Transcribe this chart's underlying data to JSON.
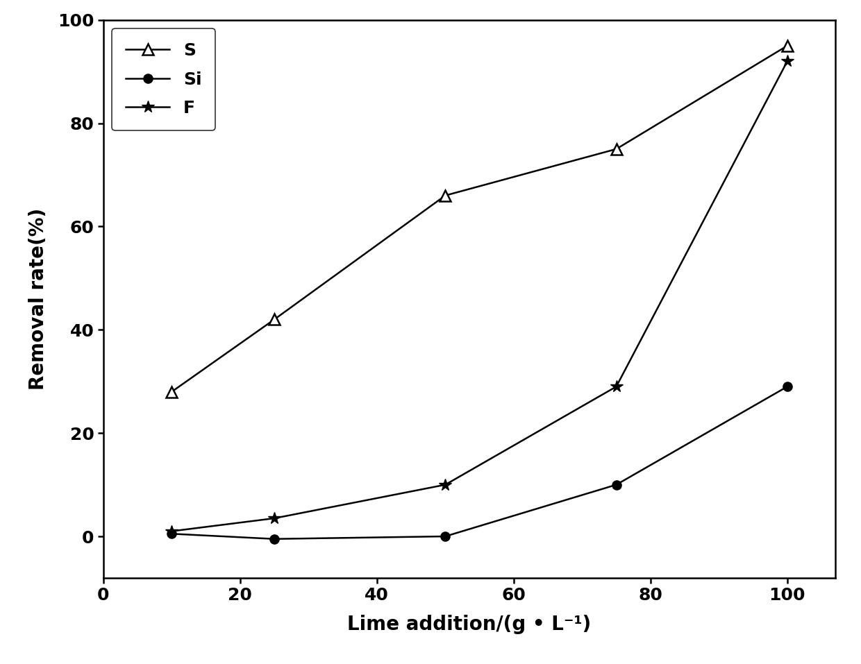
{
  "x": [
    10,
    25,
    50,
    75,
    100
  ],
  "S_y": [
    28,
    42,
    66,
    75,
    95
  ],
  "Si_y": [
    0.5,
    -0.5,
    0,
    10,
    29
  ],
  "F_y": [
    1,
    3.5,
    10,
    29,
    92
  ],
  "xlabel": "Lime addition/(g • L⁻¹)",
  "ylabel": "Removal rate(%)",
  "xlim": [
    0,
    107
  ],
  "ylim": [
    -8,
    100
  ],
  "yticks": [
    0,
    20,
    40,
    60,
    80,
    100
  ],
  "xticks": [
    0,
    20,
    40,
    60,
    80,
    100
  ],
  "line_color": "#000000",
  "legend_labels": [
    "S",
    "Si",
    "F"
  ],
  "label_fontsize": 20,
  "tick_fontsize": 18,
  "legend_fontsize": 18,
  "linewidth": 1.8,
  "marker_size_triangle": 11,
  "marker_size_circle": 9,
  "marker_size_star": 13
}
